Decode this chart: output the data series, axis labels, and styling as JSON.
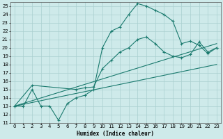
{
  "xlabel": "Humidex (Indice chaleur)",
  "bg_color": "#ceeaea",
  "grid_color": "#aacfcf",
  "line_color": "#1a7a6e",
  "xlim": [
    -0.5,
    23.5
  ],
  "ylim": [
    11,
    25.5
  ],
  "xticks": [
    0,
    1,
    2,
    3,
    4,
    5,
    6,
    7,
    8,
    9,
    10,
    11,
    12,
    13,
    14,
    15,
    16,
    17,
    18,
    19,
    20,
    21,
    22,
    23
  ],
  "yticks": [
    11,
    12,
    13,
    14,
    15,
    16,
    17,
    18,
    19,
    20,
    21,
    22,
    23,
    24,
    25
  ],
  "line1_x": [
    0,
    1,
    2,
    3,
    4,
    5,
    6,
    7,
    8,
    9,
    10,
    11,
    12,
    13,
    14,
    15,
    16,
    17,
    18,
    19,
    20,
    21,
    22,
    23
  ],
  "line1_y": [
    13,
    13,
    15,
    13,
    13,
    11.3,
    13.3,
    14.0,
    14.3,
    15.0,
    20.0,
    22.0,
    22.5,
    24.0,
    25.3,
    25.0,
    24.5,
    24.0,
    23.2,
    20.5,
    20.8,
    20.3,
    19.3,
    20.0
  ],
  "line2_x": [
    0,
    2,
    7,
    8,
    9,
    10,
    11,
    12,
    13,
    14,
    15,
    16,
    17,
    18,
    19,
    20,
    21,
    22,
    23
  ],
  "line2_y": [
    13,
    15.5,
    15.0,
    15.2,
    15.3,
    17.5,
    18.5,
    19.5,
    20.0,
    21.0,
    21.3,
    20.5,
    19.5,
    19.0,
    18.8,
    19.2,
    20.7,
    19.5,
    20.0
  ],
  "line3_x": [
    0,
    23
  ],
  "line3_y": [
    13.0,
    18.0
  ],
  "line4_x": [
    0,
    23
  ],
  "line4_y": [
    13.0,
    20.5
  ]
}
